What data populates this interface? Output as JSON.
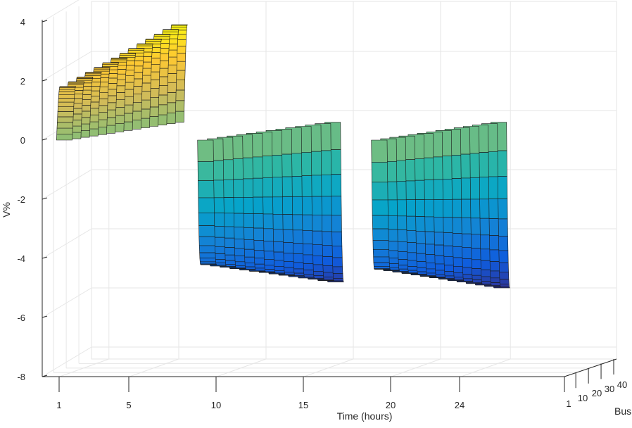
{
  "chart_data": {
    "type": "surface",
    "title": "",
    "xlabel": "Time (hours)",
    "ylabel": "Bus",
    "zlabel": "V%",
    "xlim": [
      0,
      29
    ],
    "ylim": [
      1,
      40
    ],
    "zlim": [
      -8,
      4
    ],
    "x_ticks": [
      "1",
      "5",
      "10",
      "15",
      "20",
      "24"
    ],
    "y_ticks": [
      "1",
      "10",
      "20",
      "30",
      "40"
    ],
    "z_ticks": [
      "4",
      "2",
      "0",
      "-2",
      "-4",
      "-6",
      "-8"
    ],
    "colormap": "parula",
    "grid": true,
    "segments": [
      {
        "x_start": 0.5,
        "x_end": 8.5,
        "z_min": 0,
        "z_max": 3.3
      },
      {
        "x_start": 8.5,
        "x_end": 18.5,
        "z_min": -5.4,
        "z_max": 0
      },
      {
        "x_start": 18.5,
        "x_end": 27.5,
        "z_min": -5.6,
        "z_max": 0
      }
    ]
  },
  "colors": {
    "background": "#ffffff",
    "grid": "#e6e6e6",
    "axis": "#262626",
    "edge": "#1a1a1a",
    "parula": [
      "#352a87",
      "#0f5cdd",
      "#1481d6",
      "#06a4ca",
      "#2eb7a4",
      "#87bf77",
      "#d1bb59",
      "#fec832",
      "#f9fb0e"
    ]
  }
}
